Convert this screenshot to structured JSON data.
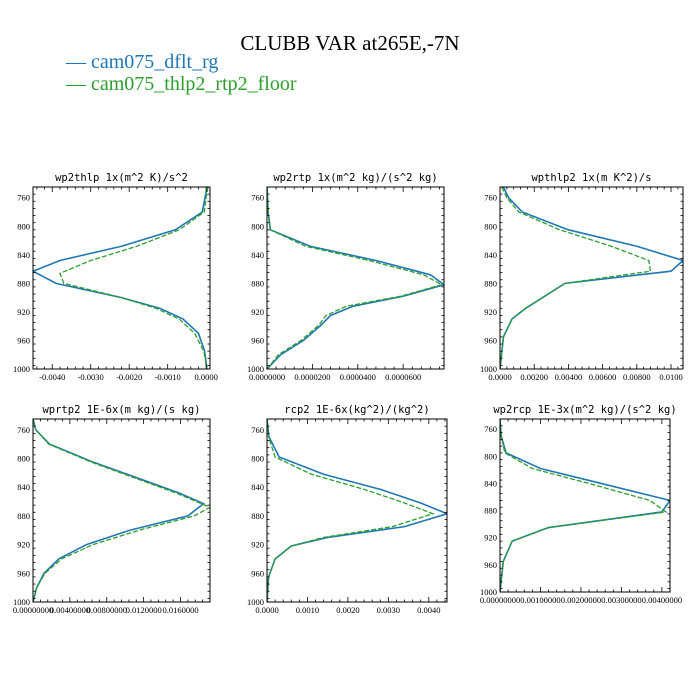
{
  "figure": {
    "title": "CLUBB VAR at265E,-7N",
    "legend": [
      {
        "label": "cam075_dflt_rg",
        "color": "#1f77b4",
        "dashed": false
      },
      {
        "label": "cam075_thlp2_rtp2_floor",
        "color": "#2ca02c",
        "dashed": true
      }
    ]
  },
  "chart_data": [
    {
      "type": "line",
      "title": "wp2thlp   1x(m^2 K)/s^2",
      "xlim": [
        -0.0045,
        0.0001
      ],
      "ylim": [
        1000,
        745
      ],
      "xticks": [
        -0.004,
        -0.003,
        -0.002,
        -0.001,
        0.0
      ],
      "xtick_labels": [
        "-0.0040",
        "-0.0030",
        "-0.0020",
        "-0.0010",
        "0.0000"
      ],
      "yticks": [
        760,
        800,
        840,
        880,
        920,
        960,
        1000
      ],
      "series": [
        {
          "values": [
            [
              3e-05,
              745
            ],
            [
              -3e-05,
              760
            ],
            [
              -0.0001,
              780
            ],
            [
              -0.0008,
              805
            ],
            [
              -0.0022,
              828
            ],
            [
              -0.0038,
              848
            ],
            [
              -0.0045,
              863
            ],
            [
              -0.0039,
              880
            ],
            [
              -0.0022,
              900
            ],
            [
              -0.0012,
              915
            ],
            [
              -0.0006,
              930
            ],
            [
              -0.0002,
              950
            ],
            [
              -4e-05,
              975
            ],
            [
              2e-05,
              1000
            ]
          ]
        },
        {
          "values": [
            [
              5e-05,
              745
            ],
            [
              0.0,
              760
            ],
            [
              -5e-05,
              780
            ],
            [
              -0.0007,
              805
            ],
            [
              -0.0018,
              828
            ],
            [
              -0.003,
              848
            ],
            [
              -0.0038,
              866
            ],
            [
              -0.0037,
              880
            ],
            [
              -0.0022,
              900
            ],
            [
              -0.0013,
              915
            ],
            [
              -0.0007,
              930
            ],
            [
              -0.0003,
              950
            ],
            [
              -6e-05,
              975
            ],
            [
              2e-05,
              1000
            ]
          ]
        }
      ]
    },
    {
      "type": "line",
      "title": "wp2rtp   1x(m^2 kg)/(s^2 kg)",
      "xlim": [
        0.0,
        7.8e-05
      ],
      "ylim": [
        1000,
        745
      ],
      "xticks": [
        0.0,
        2e-05,
        4e-05,
        6e-05
      ],
      "xtick_labels": [
        "0.0000000",
        "0.0000200",
        "0.0000400",
        "0.0000600"
      ],
      "yticks": [
        760,
        800,
        840,
        880,
        920,
        960,
        1000
      ],
      "series": [
        {
          "values": [
            [
              0.0,
              745
            ],
            [
              5e-07,
              780
            ],
            [
              1.5e-06,
              805
            ],
            [
              1.9e-05,
              828
            ],
            [
              4.8e-05,
              848
            ],
            [
              7.2e-05,
              868
            ],
            [
              7.8e-05,
              882
            ],
            [
              6e-05,
              898
            ],
            [
              3.8e-05,
              912
            ],
            [
              2.8e-05,
              925
            ],
            [
              2.4e-05,
              938
            ],
            [
              1.6e-05,
              960
            ],
            [
              6e-06,
              980
            ],
            [
              0.0,
              1000
            ]
          ]
        },
        {
          "values": [
            [
              0.0,
              745
            ],
            [
              5e-07,
              780
            ],
            [
              1.5e-06,
              805
            ],
            [
              1.7e-05,
              828
            ],
            [
              4.5e-05,
              848
            ],
            [
              6.9e-05,
              868
            ],
            [
              7.7e-05,
              882
            ],
            [
              5.9e-05,
              898
            ],
            [
              3.5e-05,
              912
            ],
            [
              2.6e-05,
              925
            ],
            [
              2.3e-05,
              938
            ],
            [
              1.5e-05,
              960
            ],
            [
              5e-06,
              980
            ],
            [
              0.0,
              1000
            ]
          ]
        }
      ]
    },
    {
      "type": "line",
      "title": "wpthlp2   1x(m K^2)/s",
      "xlim": [
        0.0,
        0.0107
      ],
      "ylim": [
        1000,
        745
      ],
      "xticks": [
        0.0,
        0.002,
        0.004,
        0.006,
        0.008,
        0.01
      ],
      "xtick_labels": [
        "0.0000",
        "0.00200",
        "0.00400",
        "0.00600",
        "0.00800",
        "0.0100"
      ],
      "yticks": [
        760,
        800,
        840,
        880,
        920,
        960,
        1000
      ],
      "series": [
        {
          "values": [
            [
              0.0002,
              745
            ],
            [
              0.0005,
              760
            ],
            [
              0.0013,
              780
            ],
            [
              0.004,
              805
            ],
            [
              0.008,
              828
            ],
            [
              0.0107,
              848
            ],
            [
              0.01,
              863
            ],
            [
              0.0038,
              880
            ],
            [
              0.0015,
              915
            ],
            [
              0.0007,
              930
            ],
            [
              0.0002,
              955
            ],
            [
              0.0,
              1000
            ]
          ]
        },
        {
          "values": [
            [
              0.0001,
              745
            ],
            [
              0.0004,
              760
            ],
            [
              0.0011,
              780
            ],
            [
              0.0035,
              805
            ],
            [
              0.0065,
              828
            ],
            [
              0.0087,
              848
            ],
            [
              0.0088,
              863
            ],
            [
              0.0038,
              880
            ],
            [
              0.0015,
              915
            ],
            [
              0.0007,
              930
            ],
            [
              0.0002,
              955
            ],
            [
              0.0,
              1000
            ]
          ]
        }
      ]
    },
    {
      "type": "line",
      "title": "wprtp2   1E-6x(m kg)/(s kg)",
      "xlim": [
        0.0,
        0.0192
      ],
      "ylim": [
        1000,
        745
      ],
      "xticks": [
        0.0,
        0.004,
        0.008,
        0.012,
        0.016
      ],
      "xtick_labels": [
        "0.00000000",
        "0.00400000",
        "0.00800000",
        "0.0120000",
        "0.0160000"
      ],
      "yticks": [
        760,
        800,
        840,
        880,
        920,
        960,
        1000
      ],
      "series": [
        {
          "values": [
            [
              0.0,
              745
            ],
            [
              0.0003,
              760
            ],
            [
              0.0018,
              780
            ],
            [
              0.0065,
              805
            ],
            [
              0.0115,
              828
            ],
            [
              0.0158,
              848
            ],
            [
              0.0185,
              863
            ],
            [
              0.0168,
              880
            ],
            [
              0.0105,
              900
            ],
            [
              0.0058,
              920
            ],
            [
              0.0028,
              940
            ],
            [
              0.0012,
              960
            ],
            [
              0.0004,
              980
            ],
            [
              0.0,
              1000
            ]
          ]
        },
        {
          "values": [
            [
              0.0,
              745
            ],
            [
              0.0003,
              760
            ],
            [
              0.0017,
              780
            ],
            [
              0.0063,
              805
            ],
            [
              0.0112,
              828
            ],
            [
              0.0155,
              848
            ],
            [
              0.0192,
              868
            ],
            [
              0.0175,
              880
            ],
            [
              0.0115,
              900
            ],
            [
              0.0065,
              920
            ],
            [
              0.0031,
              940
            ],
            [
              0.0013,
              960
            ],
            [
              0.0004,
              980
            ],
            [
              0.0,
              1000
            ]
          ]
        }
      ]
    },
    {
      "type": "line",
      "title": "rcp2   1E-6x(kg^2)/(kg^2)",
      "xlim": [
        0.0,
        0.00445
      ],
      "ylim": [
        1000,
        745
      ],
      "xticks": [
        0.0,
        0.001,
        0.002,
        0.003,
        0.004
      ],
      "xtick_labels": [
        "0.0000",
        "0.0010",
        "0.0020",
        "0.0030",
        "0.0040"
      ],
      "yticks": [
        760,
        800,
        840,
        880,
        920,
        960,
        1000
      ],
      "series": [
        {
          "values": [
            [
              0.0,
              745
            ],
            [
              5e-05,
              770
            ],
            [
              0.0003,
              798
            ],
            [
              0.0014,
              822
            ],
            [
              0.0028,
              843
            ],
            [
              0.0038,
              862
            ],
            [
              0.00445,
              877
            ],
            [
              0.0034,
              895
            ],
            [
              0.0015,
              910
            ],
            [
              0.0006,
              922
            ],
            [
              0.0002,
              940
            ],
            [
              4e-05,
              965
            ],
            [
              0.0,
              1000
            ]
          ]
        },
        {
          "values": [
            [
              0.0,
              745
            ],
            [
              4e-05,
              770
            ],
            [
              0.0002,
              798
            ],
            [
              0.0011,
              822
            ],
            [
              0.0024,
              843
            ],
            [
              0.0034,
              862
            ],
            [
              0.0041,
              877
            ],
            [
              0.0031,
              895
            ],
            [
              0.0014,
              910
            ],
            [
              0.0006,
              922
            ],
            [
              0.0002,
              940
            ],
            [
              4e-05,
              965
            ],
            [
              0.0,
              1000
            ]
          ]
        }
      ]
    },
    {
      "type": "line",
      "title": "wp2rcp   1E-3x(m^2 kg)/(s^2 kg)",
      "xlim": [
        0.0,
        0.0042
      ],
      "ylim": [
        1000,
        745
      ],
      "xticks": [
        0.0,
        0.001,
        0.002,
        0.003,
        0.004
      ],
      "xtick_labels": [
        "0.00000000",
        "0.00100000",
        "0.00200000",
        "0.00300000",
        "0.00400000"
      ],
      "yticks": [
        760,
        800,
        840,
        880,
        920,
        960,
        1000
      ],
      "series": [
        {
          "values": [
            [
              0.0,
              745
            ],
            [
              3e-05,
              770
            ],
            [
              0.00015,
              795
            ],
            [
              0.001,
              818
            ],
            [
              0.0025,
              840
            ],
            [
              0.0042,
              865
            ],
            [
              0.004,
              882
            ],
            [
              0.0012,
              905
            ],
            [
              0.0003,
              925
            ],
            [
              8e-05,
              955
            ],
            [
              0.0,
              1000
            ]
          ]
        },
        {
          "values": [
            [
              0.0,
              745
            ],
            [
              3e-05,
              770
            ],
            [
              0.00012,
              795
            ],
            [
              0.0008,
              818
            ],
            [
              0.0022,
              840
            ],
            [
              0.0037,
              865
            ],
            [
              0.0041,
              882
            ],
            [
              0.0012,
              905
            ],
            [
              0.0003,
              925
            ],
            [
              8e-05,
              955
            ],
            [
              0.0,
              1000
            ]
          ]
        }
      ]
    }
  ]
}
